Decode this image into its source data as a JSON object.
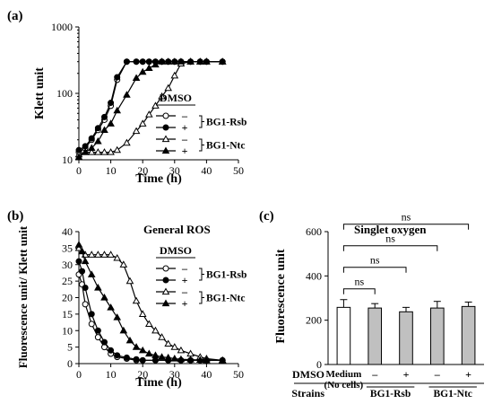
{
  "chart_data": [
    {
      "panel": "(a)",
      "type": "line",
      "title": "",
      "xlabel": "Time (h)",
      "ylabel": "Klett unit",
      "xlim": [
        0,
        50
      ],
      "ylim": [
        10,
        1000
      ],
      "yscale": "log",
      "xticks": [
        "0",
        "10",
        "20",
        "30",
        "40",
        "50"
      ],
      "yticks": [
        "10",
        "100",
        "1000"
      ],
      "legend": {
        "header": "DMSO",
        "placement": "right",
        "rows": [
          {
            "dmso": "–",
            "strain": "BG1-Rsb"
          },
          {
            "dmso": "+",
            "strain": "BG1-Rsb"
          },
          {
            "dmso": "–",
            "strain": "BG1-Ntc"
          },
          {
            "dmso": "+",
            "strain": "BG1-Ntc"
          }
        ],
        "groups": [
          "BG1-Rsb",
          "BG1-Ntc"
        ]
      },
      "series": [
        {
          "marker": "circle-open",
          "x": [
            0,
            2,
            4,
            6,
            8,
            10,
            12,
            15,
            18,
            20,
            22,
            24,
            26,
            28,
            30,
            32,
            35,
            38,
            40,
            45
          ],
          "y": [
            13,
            15,
            20,
            28,
            40,
            65,
            160,
            300,
            300,
            300,
            300,
            300,
            300,
            300,
            300,
            300,
            300,
            300,
            300,
            300
          ]
        },
        {
          "marker": "circle-filled",
          "x": [
            0,
            2,
            4,
            6,
            8,
            10,
            12,
            15,
            18,
            20,
            22,
            24,
            26,
            28,
            30,
            32,
            35,
            38,
            40,
            45
          ],
          "y": [
            14,
            16,
            21,
            30,
            44,
            72,
            175,
            300,
            300,
            300,
            300,
            300,
            300,
            300,
            300,
            300,
            300,
            300,
            300,
            300
          ]
        },
        {
          "marker": "triangle-open",
          "x": [
            0,
            2,
            4,
            6,
            8,
            10,
            12,
            15,
            18,
            20,
            22,
            24,
            26,
            28,
            30,
            32,
            35,
            38,
            40,
            45
          ],
          "y": [
            12,
            13,
            13,
            13,
            13,
            13,
            14,
            18,
            27,
            35,
            48,
            65,
            90,
            120,
            185,
            280,
            300,
            300,
            300,
            300
          ]
        },
        {
          "marker": "triangle-filled",
          "x": [
            0,
            2,
            4,
            6,
            8,
            10,
            12,
            15,
            18,
            20,
            22,
            24,
            26,
            28,
            30,
            32,
            35,
            38,
            40,
            45
          ],
          "y": [
            11,
            13,
            15,
            19,
            28,
            35,
            55,
            95,
            170,
            210,
            240,
            270,
            300,
            300,
            300,
            300,
            300,
            300,
            300,
            300
          ]
        }
      ]
    },
    {
      "panel": "(b)",
      "type": "line",
      "title": "General ROS",
      "xlabel": "Time (h)",
      "ylabel": "Fluorescence unit/ Klett unit",
      "xlim": [
        0,
        50
      ],
      "ylim": [
        0,
        40
      ],
      "xticks": [
        "0",
        "10",
        "20",
        "30",
        "40",
        "50"
      ],
      "yticks": [
        "0",
        "5",
        "10",
        "15",
        "20",
        "25",
        "30",
        "35",
        "40"
      ],
      "legend": {
        "header": "DMSO",
        "placement": "right",
        "rows": [
          {
            "dmso": "–",
            "strain": "BG1-Rsb"
          },
          {
            "dmso": "+",
            "strain": "BG1-Rsb"
          },
          {
            "dmso": "–",
            "strain": "BG1-Ntc"
          },
          {
            "dmso": "+",
            "strain": "BG1-Ntc"
          }
        ],
        "groups": [
          "BG1-Rsb",
          "BG1-Ntc"
        ]
      },
      "series": [
        {
          "marker": "circle-open",
          "x": [
            0,
            1,
            2,
            4,
            6,
            8,
            10,
            12,
            15,
            18,
            20,
            24,
            28,
            32,
            35,
            38,
            40,
            45
          ],
          "y": [
            27,
            24,
            18,
            12,
            8,
            5,
            3,
            2,
            1.5,
            1,
            1,
            1,
            1,
            1,
            1,
            1,
            1,
            1
          ]
        },
        {
          "marker": "circle-filled",
          "x": [
            0,
            1,
            2,
            4,
            6,
            8,
            10,
            12,
            15,
            18,
            20,
            24,
            28,
            32,
            35,
            38,
            40,
            45
          ],
          "y": [
            31,
            28,
            23,
            15,
            10,
            6.5,
            4,
            2.5,
            1.8,
            1.3,
            1,
            1,
            1,
            1,
            1,
            1,
            1,
            1
          ]
        },
        {
          "marker": "triangle-open",
          "x": [
            0,
            1,
            2,
            4,
            6,
            8,
            10,
            12,
            14,
            16,
            18,
            20,
            22,
            24,
            26,
            28,
            30,
            32,
            35,
            38,
            40,
            45
          ],
          "y": [
            35,
            34,
            33,
            33,
            33,
            33,
            33,
            32,
            30,
            25,
            19,
            15,
            12,
            10,
            8,
            6,
            5,
            4,
            3,
            2,
            1.5,
            1
          ]
        },
        {
          "marker": "triangle-filled",
          "x": [
            0,
            1,
            2,
            4,
            6,
            8,
            10,
            12,
            14,
            16,
            18,
            20,
            22,
            24,
            26,
            28,
            30,
            32,
            35,
            38,
            40,
            45
          ],
          "y": [
            36,
            34,
            31,
            27,
            23,
            20,
            17,
            14,
            10,
            7,
            5,
            4,
            3,
            2.5,
            2,
            1.8,
            1.5,
            1.3,
            1.2,
            1.1,
            1,
            1
          ]
        }
      ]
    },
    {
      "panel": "(c)",
      "type": "bar",
      "title": "Singlet oxygen",
      "xlabel": "",
      "ylabel": "Fluorescence unit",
      "ylim": [
        0,
        600
      ],
      "yticks": [
        "0",
        "200",
        "400",
        "600"
      ],
      "values": [
        258,
        255,
        238,
        255,
        262
      ],
      "errors": [
        35,
        20,
        20,
        30,
        20
      ],
      "fills": [
        "open",
        "gray",
        "gray",
        "gray",
        "gray"
      ],
      "dmso_row_label": "DMSO",
      "strains_row_label": "Strains",
      "dmso": [
        "",
        "–",
        "+",
        "–",
        "+"
      ],
      "medium_label": [
        "Medium",
        "(No cells)"
      ],
      "strain_groups": [
        "BG1-Rsb",
        "BG1-Ntc"
      ],
      "comparisons": [
        {
          "from": 0,
          "to": 1,
          "label": "ns"
        },
        {
          "from": 0,
          "to": 2,
          "label": "ns"
        },
        {
          "from": 0,
          "to": 3,
          "label": "ns"
        },
        {
          "from": 0,
          "to": 4,
          "label": "ns"
        }
      ]
    }
  ]
}
